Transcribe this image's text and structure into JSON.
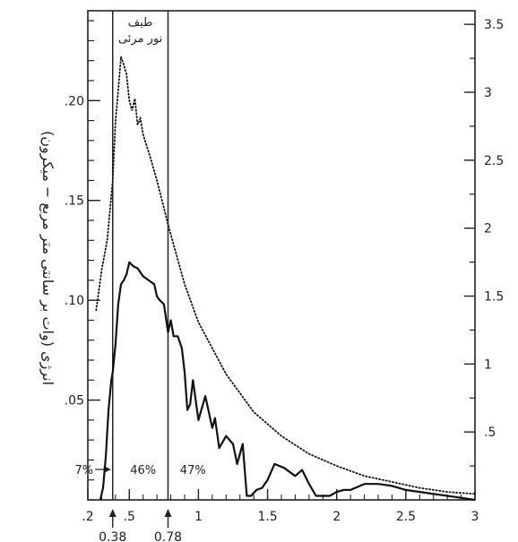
{
  "chart_data": {
    "type": "line",
    "title": "",
    "xlabel": "",
    "ylabel": "انرژی (وات بر سانتی متر مربع − میکرون)",
    "xlim": [
      0.2,
      3.0
    ],
    "ylim_left": [
      0,
      0.245
    ],
    "ylim_right": [
      0,
      3.6
    ],
    "x_ticks": [
      {
        "v": 0.2,
        "t": ".2"
      },
      {
        "v": 0.5,
        "t": ".5"
      },
      {
        "v": 1.0,
        "t": "1"
      },
      {
        "v": 1.5,
        "t": "1.5"
      },
      {
        "v": 2.0,
        "t": "2"
      },
      {
        "v": 2.5,
        "t": "2.5"
      },
      {
        "v": 3.0,
        "t": "3"
      }
    ],
    "y_ticks_left": [
      {
        "v": 0.05,
        "t": ".05"
      },
      {
        "v": 0.1,
        "t": ".10"
      },
      {
        "v": 0.15,
        "t": ".15"
      },
      {
        "v": 0.2,
        "t": ".20"
      }
    ],
    "y_ticks_right": [
      {
        "v": 0.5,
        "t": ".5"
      },
      {
        "v": 1.0,
        "t": "1"
      },
      {
        "v": 1.5,
        "t": "1.5"
      },
      {
        "v": 2.0,
        "t": "2"
      },
      {
        "v": 2.5,
        "t": "2.5"
      },
      {
        "v": 3.0,
        "t": "3"
      },
      {
        "v": 3.5,
        "t": "3.5"
      }
    ],
    "vlines": [
      {
        "x": 0.38,
        "label": "0.38"
      },
      {
        "x": 0.78,
        "label": "0.78"
      }
    ],
    "band_title": [
      "طیف",
      "نور مرئی"
    ],
    "band_percents": [
      {
        "x": 0.24,
        "t": "7%"
      },
      {
        "x": 0.6,
        "t": "46%"
      },
      {
        "x": 0.96,
        "t": "47%"
      }
    ],
    "series": [
      {
        "style": "dotted",
        "x": [
          0.26,
          0.3,
          0.34,
          0.38,
          0.4,
          0.42,
          0.44,
          0.46,
          0.48,
          0.5,
          0.52,
          0.54,
          0.56,
          0.58,
          0.6,
          0.65,
          0.7,
          0.78,
          0.9,
          1.0,
          1.2,
          1.4,
          1.6,
          1.8,
          2.0,
          2.2,
          2.4,
          2.6,
          2.8,
          3.0
        ],
        "y": [
          0.095,
          0.115,
          0.13,
          0.16,
          0.19,
          0.205,
          0.222,
          0.218,
          0.213,
          0.2,
          0.195,
          0.201,
          0.188,
          0.191,
          0.183,
          0.172,
          0.16,
          0.138,
          0.108,
          0.089,
          0.063,
          0.044,
          0.032,
          0.023,
          0.017,
          0.012,
          0.009,
          0.006,
          0.004,
          0.003
        ]
      },
      {
        "style": "solid",
        "x": [
          0.29,
          0.31,
          0.33,
          0.35,
          0.37,
          0.38,
          0.4,
          0.42,
          0.44,
          0.46,
          0.48,
          0.5,
          0.53,
          0.56,
          0.6,
          0.64,
          0.68,
          0.7,
          0.72,
          0.75,
          0.78,
          0.8,
          0.82,
          0.85,
          0.88,
          0.9,
          0.92,
          0.94,
          0.96,
          1.0,
          1.05,
          1.1,
          1.12,
          1.15,
          1.2,
          1.25,
          1.28,
          1.32,
          1.35,
          1.38,
          1.42,
          1.46,
          1.5,
          1.55,
          1.62,
          1.7,
          1.75,
          1.8,
          1.85,
          1.9,
          1.95,
          2.0,
          2.05,
          2.1,
          2.2,
          2.3,
          2.4,
          2.5,
          2.6,
          2.8,
          3.0
        ],
        "y": [
          0.0,
          0.006,
          0.022,
          0.045,
          0.06,
          0.064,
          0.078,
          0.098,
          0.108,
          0.11,
          0.113,
          0.119,
          0.117,
          0.116,
          0.112,
          0.11,
          0.108,
          0.102,
          0.1,
          0.098,
          0.084,
          0.09,
          0.082,
          0.082,
          0.076,
          0.064,
          0.045,
          0.048,
          0.06,
          0.04,
          0.052,
          0.036,
          0.041,
          0.026,
          0.032,
          0.028,
          0.018,
          0.028,
          0.002,
          0.002,
          0.005,
          0.006,
          0.01,
          0.018,
          0.016,
          0.012,
          0.015,
          0.008,
          0.002,
          0.002,
          0.002,
          0.004,
          0.005,
          0.005,
          0.008,
          0.008,
          0.007,
          0.005,
          0.004,
          0.002,
          0.0
        ]
      }
    ]
  }
}
